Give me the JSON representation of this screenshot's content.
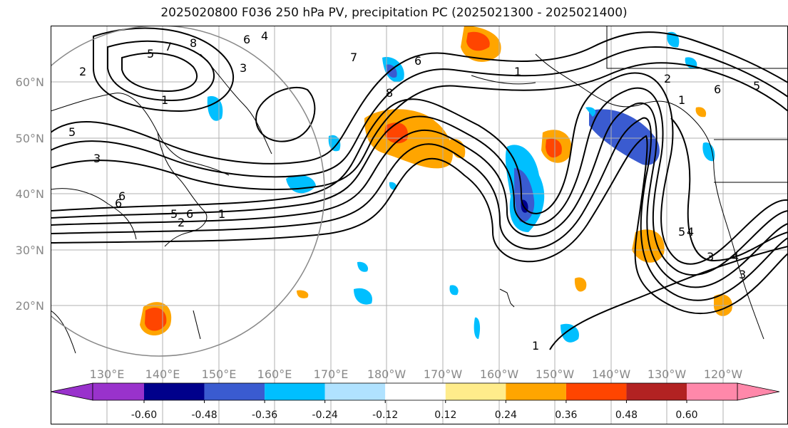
{
  "title": "2025020800 F036 250 hPa PV, precipitation PC (2025021300 - 2025021400)",
  "lat_labels": [
    "60°N",
    "50°N",
    "40°N",
    "30°N",
    "20°N"
  ],
  "lon_labels": [
    "130°E",
    "140°E",
    "150°E",
    "160°E",
    "170°E",
    "180°W",
    "170°W",
    "160°W",
    "150°W",
    "140°W",
    "130°W",
    "120°W"
  ],
  "colorbar": {
    "colors": [
      "#9932cc",
      "#00008b",
      "#3a5bd0",
      "#00bfff",
      "#b0e2ff",
      "#ffffff",
      "#ffec8b",
      "#ffa500",
      "#ff4500",
      "#b22222",
      "#ff88aa"
    ],
    "tick_labels": [
      "-0.60",
      "-0.48",
      "-0.36",
      "-0.24",
      "-0.12",
      "0.12",
      "0.24",
      "0.36",
      "0.48",
      "0.60"
    ]
  },
  "contour_labels": [
    "2",
    "5",
    "7",
    "8",
    "6",
    "4",
    "3",
    "1",
    "7",
    "6",
    "8",
    "1",
    "6",
    "1",
    "5",
    "6",
    "5",
    "3",
    "6",
    "5",
    "4",
    "2",
    "3",
    "2",
    "1",
    "6",
    "5",
    "4",
    "3",
    "1"
  ]
}
